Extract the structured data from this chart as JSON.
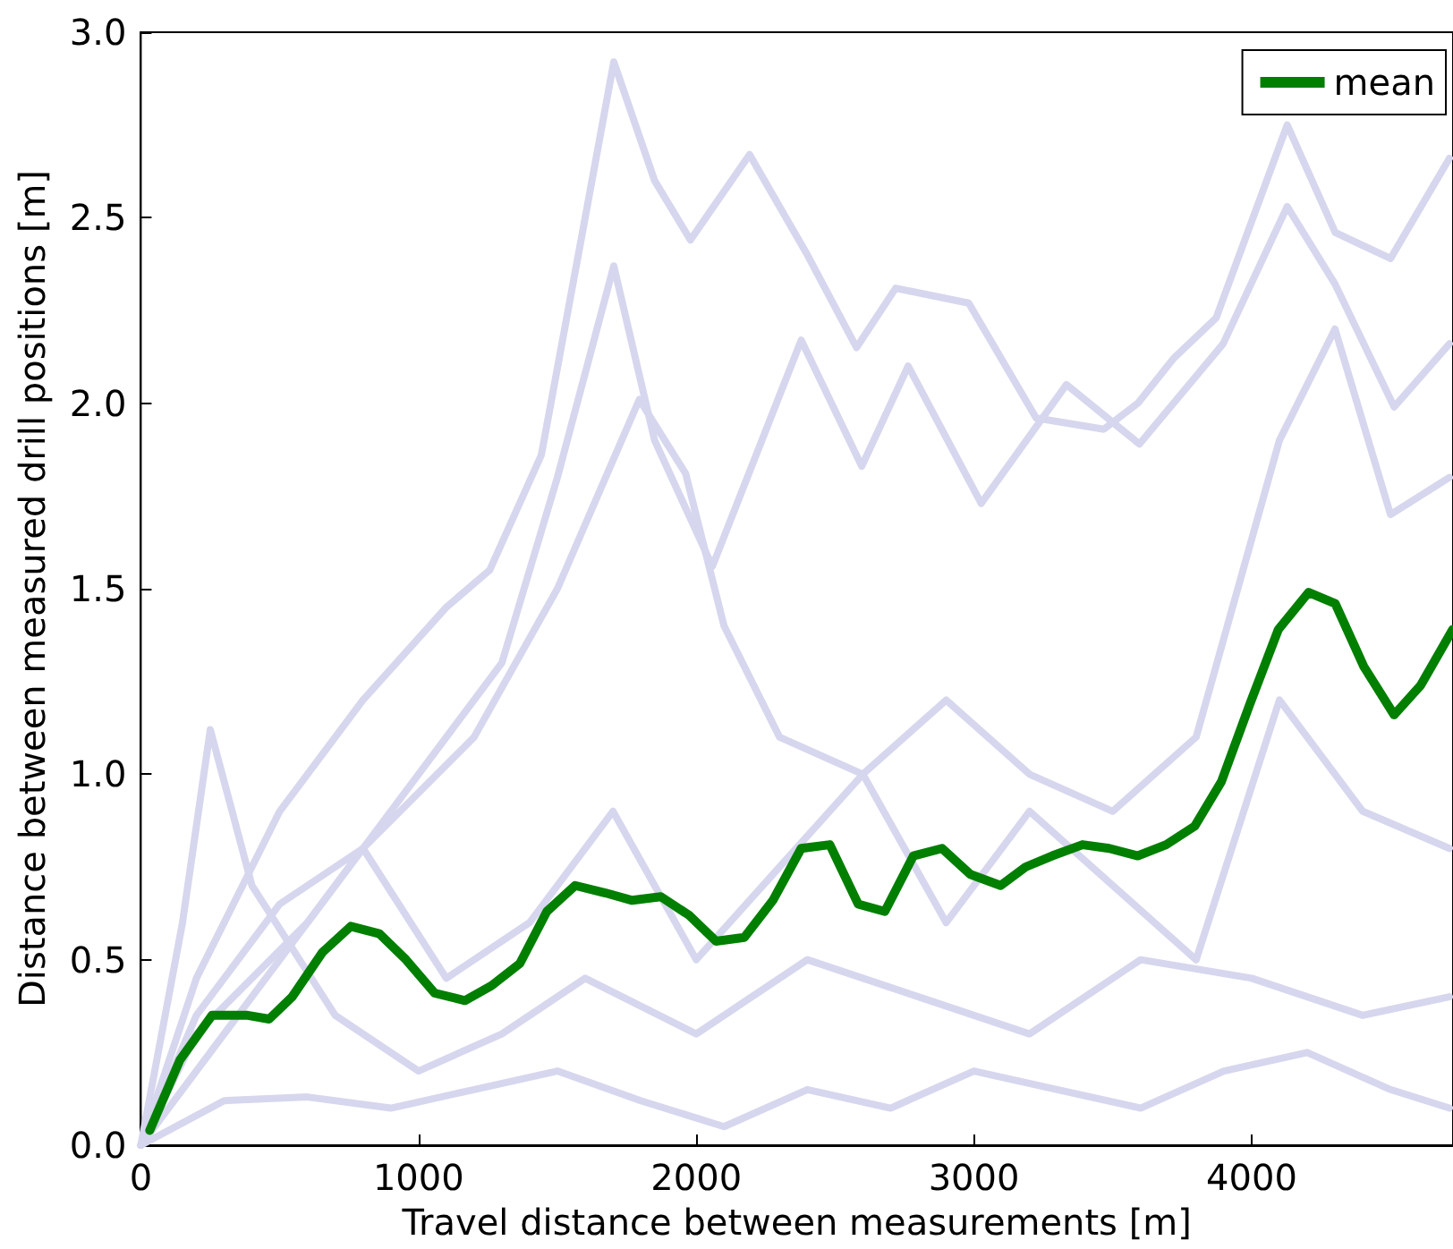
{
  "chart_data": {
    "type": "line",
    "xlabel": "Travel distance between measurements [m]",
    "ylabel": "Distance between measured drill positions [m]",
    "xlim": [
      0,
      4725
    ],
    "xticks": [
      0,
      1000,
      2000,
      3000,
      4000
    ],
    "ylim": [
      0,
      3
    ],
    "yticks": [
      {
        "value": 0,
        "label": "0.0"
      },
      0.5,
      {
        "value": 1,
        "label": "1.0"
      },
      1.5,
      {
        "value": 2,
        "label": "2.0"
      },
      2.5,
      {
        "value": 3,
        "label": "3.0"
      }
    ],
    "grid": false,
    "legend": "top right",
    "marker": "none",
    "line_style": "solid",
    "series": [
      {
        "color": "#d6d6ee",
        "x": [
          0,
          200,
          500,
          800,
          1100,
          1256,
          1442,
          1600,
          1703,
          1850,
          1979,
          2192,
          2400,
          2577,
          2718,
          2981,
          3224,
          3468,
          3590,
          3718,
          3872,
          4128,
          4301,
          4500,
          4712
        ],
        "values": [
          0,
          0.45,
          0.9,
          1.2,
          1.45,
          1.55,
          1.86,
          2.5,
          2.92,
          2.6,
          2.44,
          2.67,
          2.4,
          2.15,
          2.31,
          2.27,
          1.96,
          1.93,
          2.0,
          2.12,
          2.23,
          2.75,
          2.46,
          2.39,
          2.66
        ]
      },
      {
        "color": "#d6d6ee",
        "x": [
          0,
          200,
          600,
          1000,
          1300,
          1500,
          1703,
          1850,
          2058,
          2378,
          2596,
          2763,
          3026,
          3333,
          3596,
          3897,
          4128,
          4301,
          4513,
          4712
        ],
        "values": [
          0,
          0.3,
          0.6,
          1.0,
          1.3,
          1.8,
          2.37,
          1.9,
          1.56,
          2.17,
          1.83,
          2.1,
          1.73,
          2.05,
          1.89,
          2.16,
          2.53,
          2.32,
          1.99,
          2.16
        ]
      },
      {
        "color": "#d6d6ee",
        "x": [
          0,
          400,
          800,
          1200,
          1500,
          1795,
          1962,
          2100,
          2300,
          2600,
          2900,
          3200,
          3500,
          3800,
          4100,
          4300,
          4500,
          4712
        ],
        "values": [
          0,
          0.4,
          0.8,
          1.1,
          1.5,
          2.01,
          1.81,
          1.4,
          1.1,
          1.0,
          1.2,
          1.0,
          0.9,
          1.1,
          1.9,
          2.2,
          1.7,
          1.8
        ]
      },
      {
        "color": "#d6d6ee",
        "x": [
          0,
          300,
          600,
          900,
          1200,
          1500,
          1800,
          2100,
          2400,
          2700,
          3000,
          3300,
          3600,
          3900,
          4200,
          4500,
          4712
        ],
        "values": [
          0,
          0.12,
          0.13,
          0.1,
          0.15,
          0.2,
          0.12,
          0.05,
          0.15,
          0.1,
          0.2,
          0.15,
          0.1,
          0.2,
          0.25,
          0.15,
          0.1
        ]
      },
      {
        "color": "#d6d6ee",
        "x": [
          0,
          200,
          500,
          800,
          1100,
          1400,
          1700,
          2000,
          2300,
          2600,
          2900,
          3200,
          3500,
          3800,
          4100,
          4400,
          4712
        ],
        "values": [
          0,
          0.35,
          0.65,
          0.8,
          0.45,
          0.6,
          0.9,
          0.5,
          0.75,
          1.0,
          0.6,
          0.9,
          0.7,
          0.5,
          1.2,
          0.9,
          0.8
        ]
      },
      {
        "color": "#d6d6ee",
        "x": [
          0,
          150,
          250,
          400,
          700,
          1000,
          1300,
          1600,
          2000,
          2400,
          2800,
          3200,
          3600,
          4000,
          4400,
          4712
        ],
        "values": [
          0,
          0.6,
          1.12,
          0.7,
          0.35,
          0.2,
          0.3,
          0.45,
          0.3,
          0.5,
          0.4,
          0.3,
          0.5,
          0.45,
          0.35,
          0.4
        ]
      },
      {
        "name": "mean",
        "color": "#007f00",
        "x": [
          32,
          141,
          256,
          385,
          462,
          545,
          654,
          756,
          859,
          955,
          1058,
          1167,
          1263,
          1365,
          1462,
          1564,
          1673,
          1769,
          1872,
          1974,
          2071,
          2173,
          2276,
          2378,
          2481,
          2583,
          2679,
          2782,
          2885,
          2987,
          3096,
          3186,
          3282,
          3391,
          3487,
          3590,
          3692,
          3795,
          3891,
          3994,
          4096,
          4205,
          4301,
          4404,
          4513,
          4609,
          4724
        ],
        "values": [
          0.04,
          0.23,
          0.35,
          0.35,
          0.34,
          0.4,
          0.52,
          0.59,
          0.57,
          0.5,
          0.41,
          0.39,
          0.43,
          0.49,
          0.63,
          0.7,
          0.68,
          0.66,
          0.67,
          0.62,
          0.55,
          0.56,
          0.66,
          0.8,
          0.81,
          0.65,
          0.63,
          0.78,
          0.8,
          0.73,
          0.7,
          0.75,
          0.78,
          0.81,
          0.8,
          0.78,
          0.81,
          0.86,
          0.98,
          1.19,
          1.39,
          1.49,
          1.46,
          1.29,
          1.16,
          1.24,
          1.39
        ]
      }
    ]
  }
}
